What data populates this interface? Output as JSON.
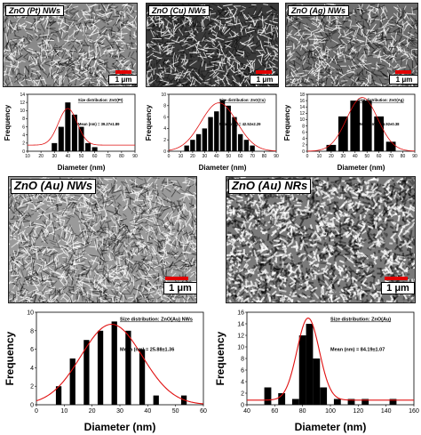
{
  "sem_images": [
    {
      "id": "pt",
      "label": "ZnO (Pt) NWs",
      "scale": "1 μm",
      "tone": "#8a8a8a"
    },
    {
      "id": "cu",
      "label": "ZnO (Cu) NWs",
      "scale": "1 μm",
      "tone": "#3a3a3a"
    },
    {
      "id": "ag",
      "label": "ZnO (Ag) NWs",
      "scale": "1 μm",
      "tone": "#6e6e6e"
    },
    {
      "id": "au-nw",
      "label": "ZnO (Au) NWs",
      "scale": "1 μm",
      "tone": "#9a9a9a"
    },
    {
      "id": "au-nr",
      "label": "ZnO (Au) NRs",
      "scale": "1 μm",
      "tone": "#7a7a7a"
    }
  ],
  "chart_data": [
    {
      "type": "bar",
      "id": "pt",
      "legend": "Size distribution: ZnO(Pt)",
      "annotation": "Mean (nm) = 39.27±1.89",
      "xlabel": "Diameter (nm)",
      "ylabel": "Frequency",
      "x": [
        30,
        35,
        40,
        45,
        50,
        55,
        60
      ],
      "values": [
        2,
        6,
        12,
        9,
        6,
        2,
        1
      ],
      "xlim": [
        10,
        90
      ],
      "ylim": [
        0,
        14
      ],
      "xticks": [
        10,
        20,
        30,
        40,
        50,
        60,
        70,
        80,
        90
      ],
      "yticks": [
        0,
        2,
        4,
        6,
        8,
        10,
        12,
        14
      ],
      "barWidth": 4,
      "fit": {
        "mu": 40,
        "sigma": 7,
        "peak": 10.5,
        "base": 1.5
      }
    },
    {
      "type": "bar",
      "id": "cu",
      "legend": "Size distribution: ZnO(Cu)",
      "annotation": "Mean (nm) = 42.52±2.29",
      "xlabel": "Diameter (nm)",
      "ylabel": "Frequency",
      "x": [
        15,
        20,
        25,
        30,
        35,
        40,
        45,
        50,
        55,
        60,
        65,
        70
      ],
      "values": [
        1,
        2,
        3,
        4,
        6,
        7,
        9,
        8,
        6,
        3,
        2,
        1
      ],
      "xlim": [
        0,
        90
      ],
      "ylim": [
        0,
        10
      ],
      "xticks": [
        0,
        10,
        20,
        30,
        40,
        50,
        60,
        70,
        80,
        90
      ],
      "yticks": [
        0,
        2,
        4,
        6,
        8,
        10
      ],
      "barWidth": 4,
      "fit": {
        "mu": 42,
        "sigma": 15,
        "peak": 8.5,
        "base": 0
      }
    },
    {
      "type": "bar",
      "id": "ag",
      "legend": "Size distribution: ZnO(Ag)",
      "annotation": "Mean (nm) = 46.92±0.38",
      "xlabel": "Diameter (nm)",
      "ylabel": "Frequency",
      "x": [
        20,
        30,
        40,
        50,
        60,
        70
      ],
      "values": [
        2,
        11,
        16,
        16,
        11,
        3
      ],
      "xlim": [
        0,
        90
      ],
      "ylim": [
        0,
        18
      ],
      "xticks": [
        0,
        10,
        20,
        30,
        40,
        50,
        60,
        70,
        80,
        90
      ],
      "yticks": [
        0,
        2,
        4,
        6,
        8,
        10,
        12,
        14,
        16,
        18
      ],
      "barWidth": 8,
      "fit": {
        "mu": 46,
        "sigma": 13,
        "peak": 17,
        "base": 0
      }
    },
    {
      "type": "bar",
      "id": "au-nw",
      "legend": "Size distribution: ZnO(Au) NWs",
      "annotation": "Mean (nm) = 25.88±1.36",
      "xlabel": "Diameter (nm)",
      "ylabel": "Frequency",
      "x": [
        8,
        13,
        18,
        23,
        28,
        33,
        38,
        43,
        53
      ],
      "values": [
        2,
        5,
        7,
        8,
        9,
        8,
        6,
        1,
        1
      ],
      "xlim": [
        0,
        60
      ],
      "ylim": [
        0,
        10
      ],
      "xticks": [
        0,
        10,
        20,
        30,
        40,
        50,
        60
      ],
      "yticks": [
        0,
        2,
        4,
        6,
        8,
        10
      ],
      "barWidth": 2,
      "fit": {
        "mu": 27,
        "sigma": 11,
        "peak": 8.7,
        "base": 0
      }
    },
    {
      "type": "bar",
      "id": "au-nr",
      "legend": "Size distribution: ZnO(Au)",
      "annotation": "Mean (nm) = 84.19±1.07",
      "xlabel": "Diameter (nm)",
      "ylabel": "Frequency",
      "x": [
        55,
        65,
        75,
        80,
        85,
        90,
        95,
        105,
        115,
        125,
        145
      ],
      "values": [
        3,
        2,
        1,
        12,
        14,
        8,
        3,
        1,
        1,
        1,
        1
      ],
      "xlim": [
        40,
        160
      ],
      "ylim": [
        0,
        16
      ],
      "xticks": [
        40,
        60,
        80,
        100,
        120,
        140,
        160
      ],
      "yticks": [
        0,
        2,
        4,
        6,
        8,
        10,
        12,
        14,
        16
      ],
      "barWidth": 5,
      "fit": {
        "mu": 84,
        "sigma": 8,
        "peak": 15,
        "base": 0.8
      }
    }
  ]
}
